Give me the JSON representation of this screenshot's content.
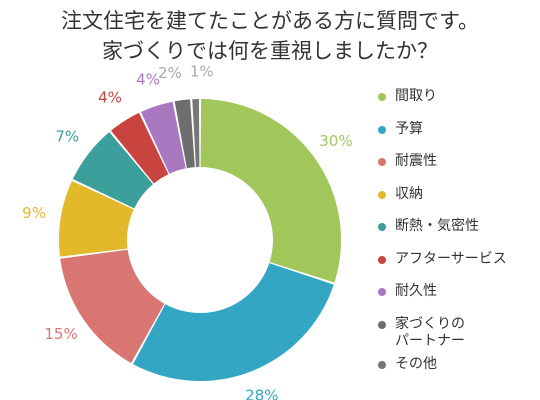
{
  "title_lines": [
    "注文住宅を建てたことがある方に質問です。",
    "家づくりでは何を重視しましたか？"
  ],
  "chart_data": {
    "type": "pie",
    "donut": true,
    "start": "top (12 o'clock), clockwise",
    "legend_placement": "right",
    "categories": [
      "間取り",
      "予算",
      "耐震性",
      "収納",
      "断熱・気密性",
      "アフターサービス",
      "耐久性",
      "家づくりの\nパートナー",
      "その他"
    ],
    "values": [
      30,
      28,
      15,
      9,
      7,
      4,
      4,
      2,
      1
    ],
    "labels": [
      "30%",
      "28%",
      "15%",
      "9%",
      "7%",
      "4%",
      "4%",
      "2%",
      "1%"
    ],
    "colors": [
      "#a1c65a",
      "#33a6c4",
      "#d97672",
      "#e3b92c",
      "#3c9f9c",
      "#c9433f",
      "#a978c0",
      "#6e6e6e",
      "#777777"
    ]
  }
}
